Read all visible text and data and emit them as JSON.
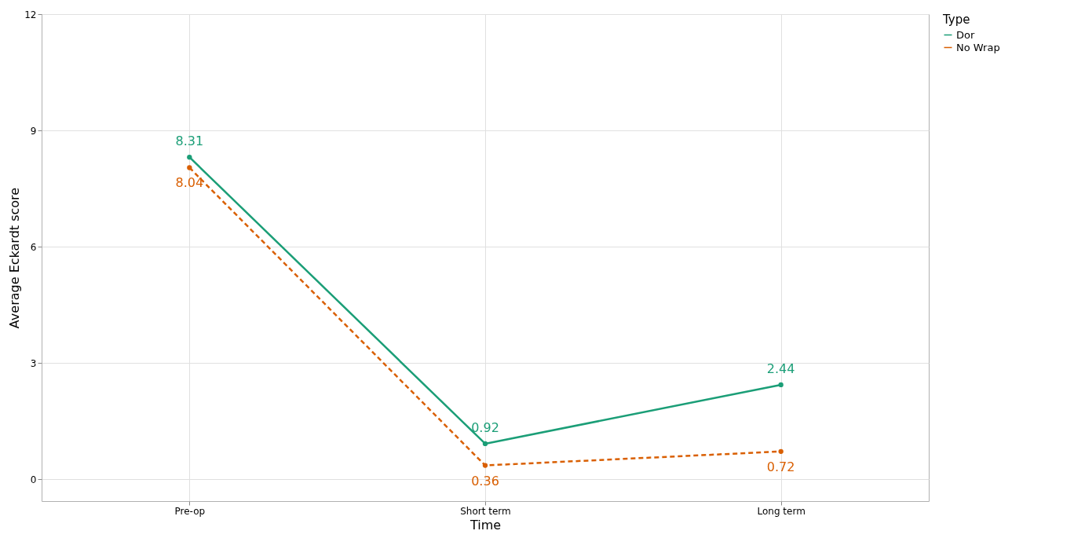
{
  "chart_data": {
    "type": "line",
    "xlabel": "Time",
    "ylabel": "Average Eckardt score",
    "legend_title": "Type",
    "categories": [
      "Pre-op",
      "Short term",
      "Long term"
    ],
    "series": [
      {
        "name": "Dor",
        "color": "#1b9e77",
        "values": [
          8.31,
          0.92,
          2.44
        ],
        "line_style": "solid"
      },
      {
        "name": "No Wrap",
        "color": "#d95f02",
        "values": [
          8.04,
          0.36,
          0.72
        ],
        "line_style": "dashed"
      }
    ],
    "ylim": [
      -0.56,
      12.0
    ],
    "yticks": [
      0,
      3,
      6,
      9,
      12
    ],
    "grid": true,
    "legend": "right",
    "marker": "circle",
    "data_labels": true
  }
}
